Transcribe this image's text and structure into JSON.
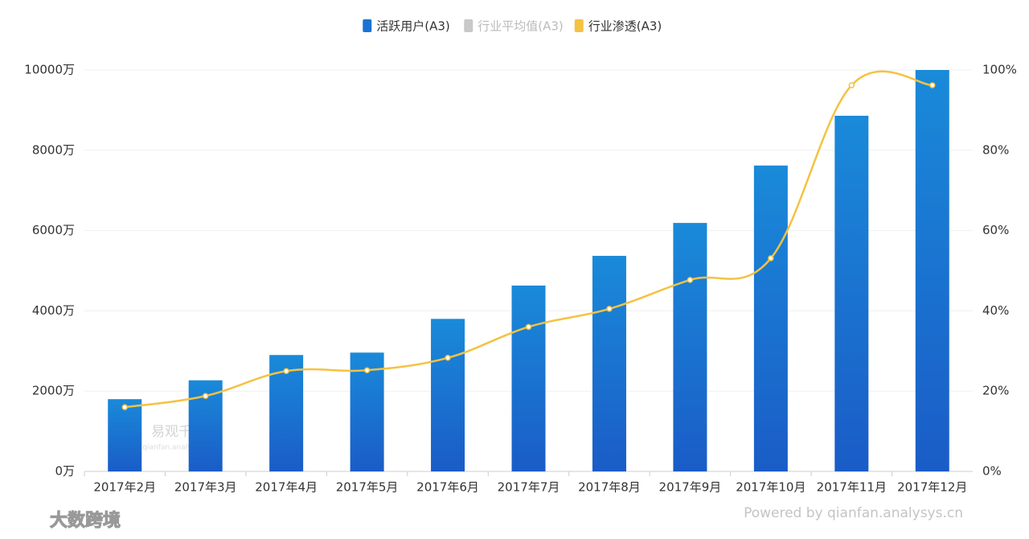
{
  "chart_data": {
    "type": "bar-line",
    "categories": [
      "2017年2月",
      "2017年3月",
      "2017年4月",
      "2017年5月",
      "2017年6月",
      "2017年7月",
      "2017年8月",
      "2017年9月",
      "2017年10月",
      "2017年11月",
      "2017年12月"
    ],
    "series": [
      {
        "name": "活跃用户(A3)",
        "color": "#1a73d4",
        "type": "bar",
        "values": [
          1800,
          2270,
          2900,
          2960,
          3800,
          4630,
          5370,
          6190,
          7620,
          8860,
          10000
        ]
      },
      {
        "name": "行业平均值(A3)",
        "color": "#c8c8c8",
        "type": "line",
        "visible": false,
        "values": [
          null,
          null,
          null,
          null,
          null,
          null,
          null,
          null,
          null,
          null,
          null
        ]
      },
      {
        "name": "行业渗透(A3)",
        "color": "#f5c242",
        "type": "line",
        "axis": "y2",
        "values": [
          16,
          18.8,
          25,
          25.2,
          28.3,
          36,
          40.5,
          47.7,
          53.1,
          96.2,
          96.2
        ]
      }
    ],
    "ylim": [
      0,
      10000
    ],
    "yticks": [
      {
        "value": 0,
        "label": "0万"
      },
      {
        "value": 2000,
        "label": "2000万"
      },
      {
        "value": 4000,
        "label": "4000万"
      },
      {
        "value": 6000,
        "label": "6000万"
      },
      {
        "value": 8000,
        "label": "8000万"
      },
      {
        "value": 10000,
        "label": "10000万"
      }
    ],
    "y2lim": [
      0,
      100
    ],
    "y2ticks": [
      {
        "value": 0,
        "label": "0%"
      },
      {
        "value": 20,
        "label": "20%"
      },
      {
        "value": 40,
        "label": "40%"
      },
      {
        "value": 60,
        "label": "60%"
      },
      {
        "value": 80,
        "label": "80%"
      },
      {
        "value": 100,
        "label": "100%"
      }
    ],
    "grid": true,
    "legend": "top",
    "annotations": [
      "易观千帆",
      "qianfan.analysys.cn",
      "Powered by qianfan.analysys.cn",
      "大数跨境"
    ]
  }
}
